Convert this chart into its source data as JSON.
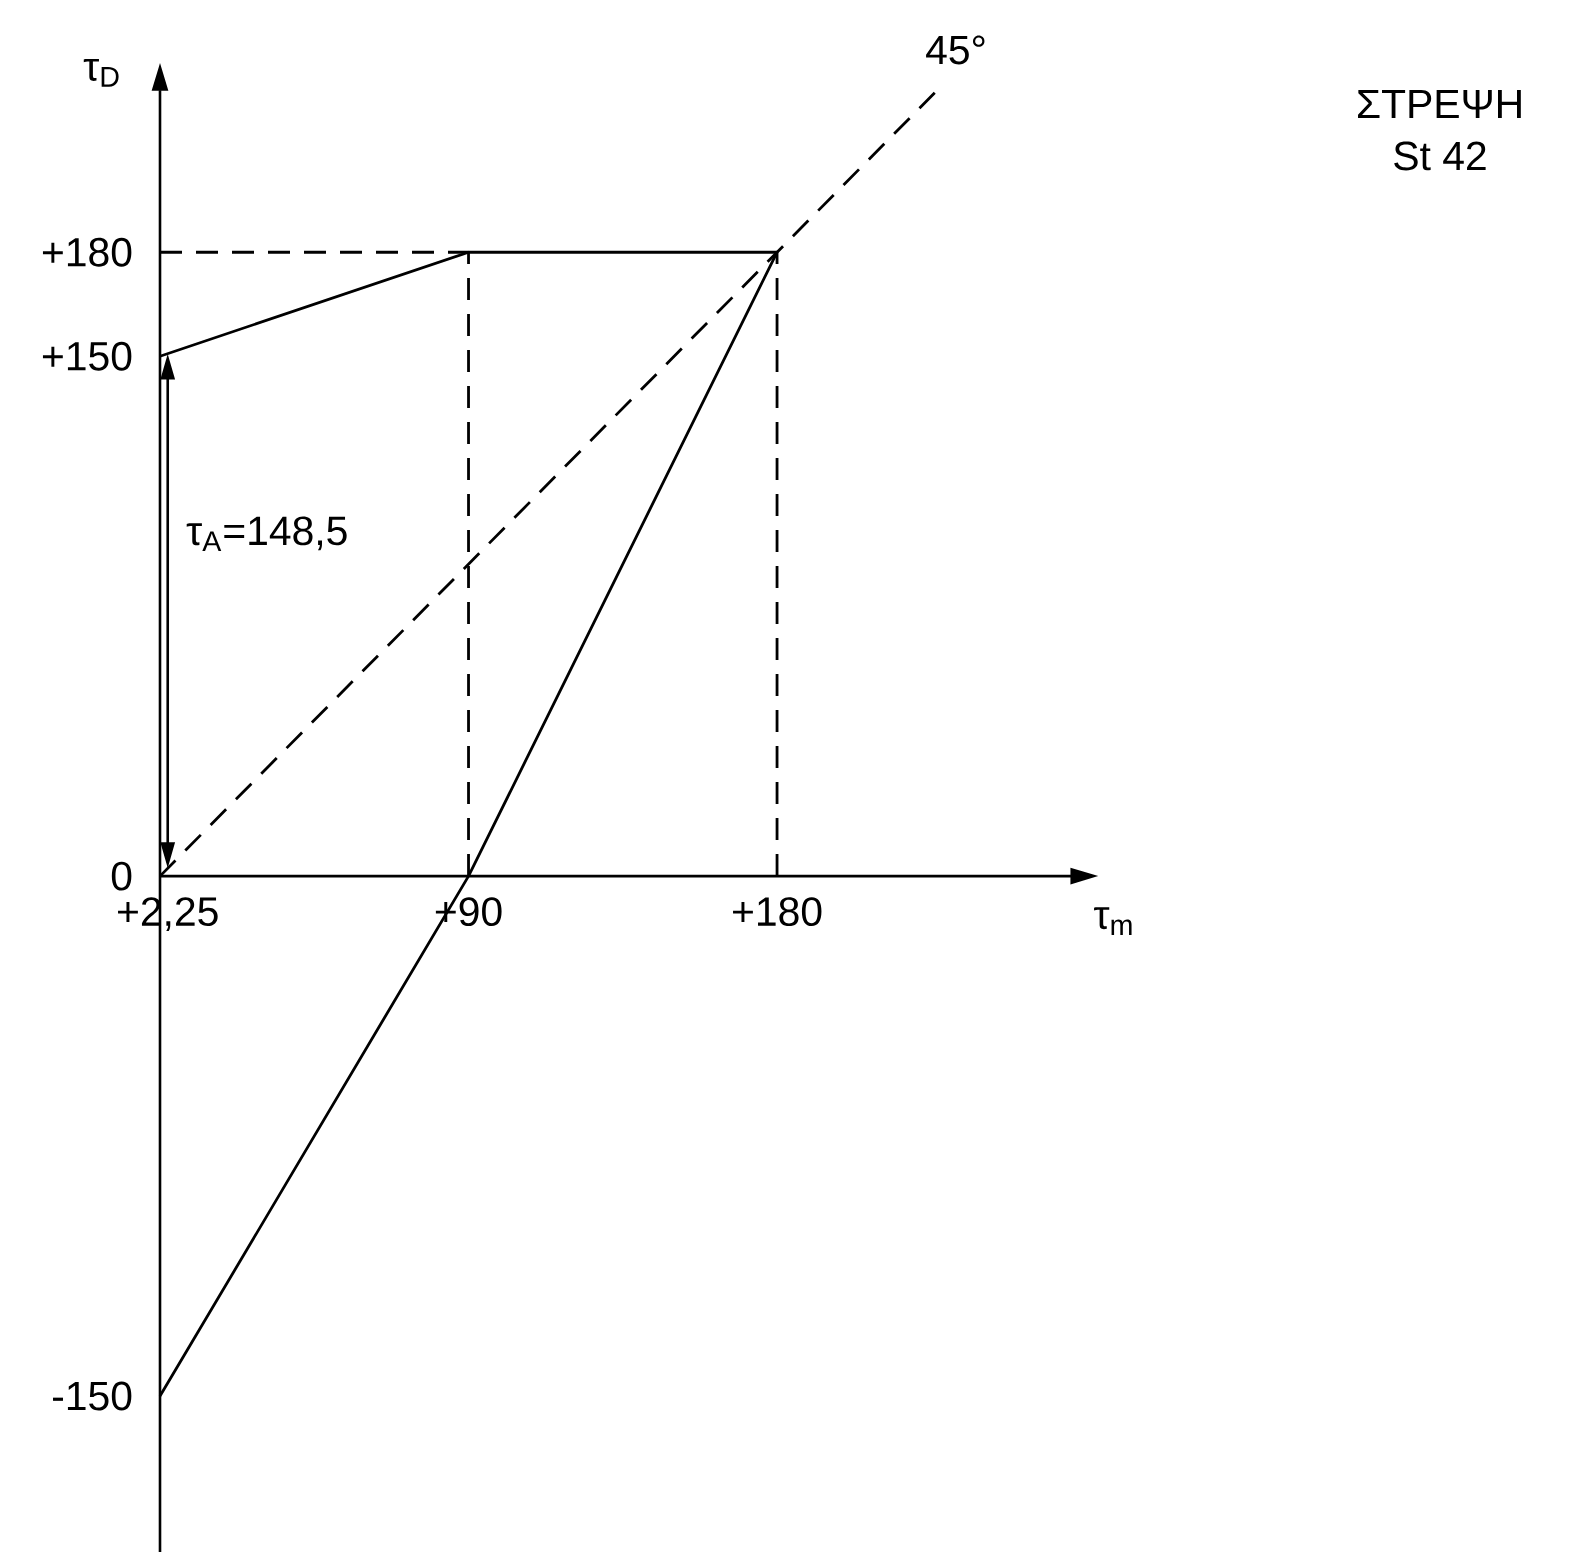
{
  "chart_data": {
    "type": "line",
    "title": "ΣΤΡΕΨΗ",
    "subtitle": "St 42",
    "xlabel": "τ$_{m}$",
    "ylabel": "τ$_{D}$",
    "xlim": [
      0,
      265
    ],
    "ylim": [
      -195,
      226
    ],
    "xticks": [
      {
        "value": 2.25,
        "label": "+2,25"
      },
      {
        "value": 90,
        "label": "+90"
      },
      {
        "value": 180,
        "label": "+180"
      }
    ],
    "yticks": [
      {
        "value": -150,
        "label": "-150"
      },
      0,
      {
        "value": 150,
        "label": "+150"
      },
      {
        "value": 180,
        "label": "+180"
      }
    ],
    "series": [
      {
        "color": "#000000",
        "line_style": "solid",
        "x": [
          0,
          90,
          180
        ],
        "values": [
          150,
          180,
          180
        ]
      },
      {
        "color": "#000000",
        "line_style": "solid",
        "x": [
          0,
          90,
          180
        ],
        "values": [
          -150,
          0,
          180
        ]
      },
      {
        "color": "#000000",
        "line_style": "dashed",
        "x": [
          0,
          226
        ],
        "values": [
          0,
          226
        ]
      },
      {
        "color": "#000000",
        "line_style": "dashed",
        "x": [
          0,
          90
        ],
        "values": [
          180,
          180
        ]
      },
      {
        "color": "#000000",
        "line_style": "dashed",
        "x": [
          90,
          90
        ],
        "values": [
          0,
          180
        ]
      },
      {
        "color": "#000000",
        "line_style": "dashed",
        "x": [
          180,
          180
        ],
        "values": [
          0,
          180
        ]
      }
    ],
    "annotations": [
      {
        "text": "45°",
        "x": 226,
        "y": 226
      },
      "τ$_{A}$=148,5"
    ]
  }
}
